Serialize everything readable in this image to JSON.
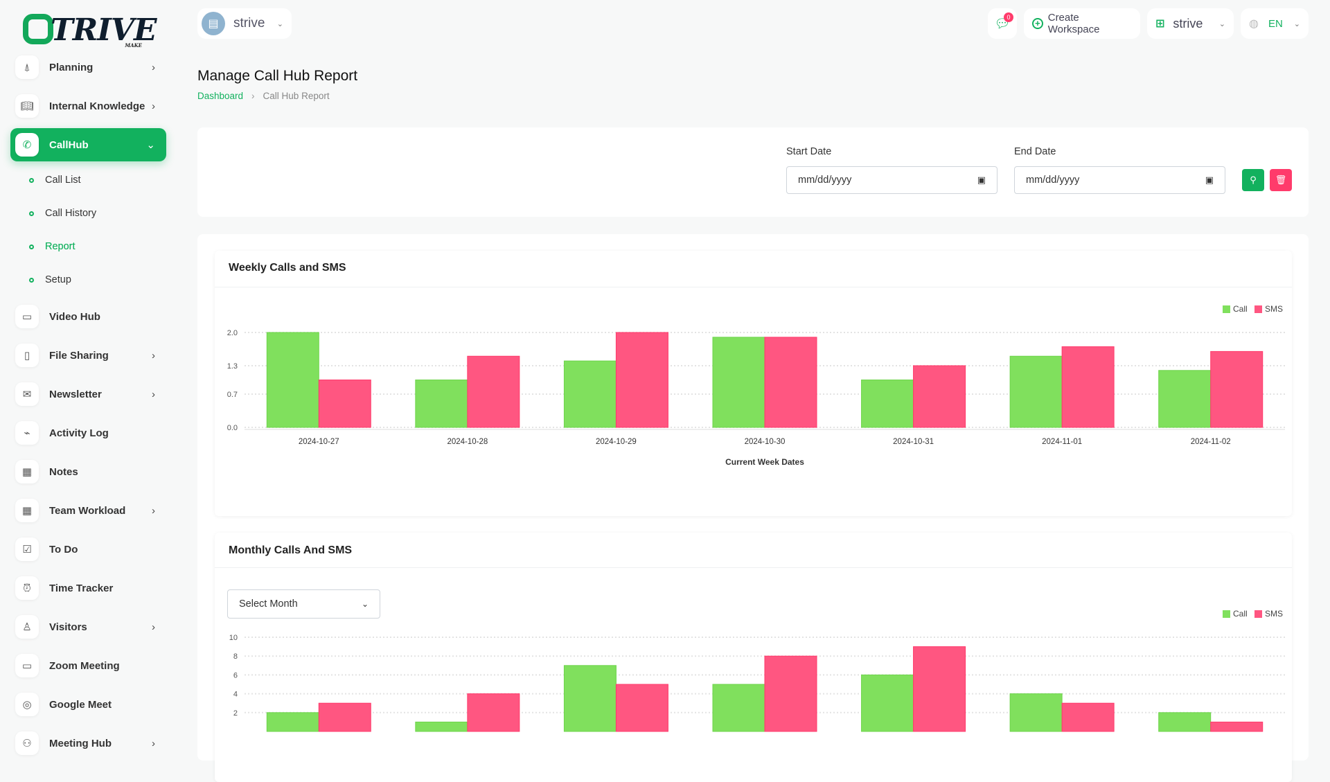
{
  "brand": {
    "logo_text": "TRIVE",
    "logo_sub": "MAKE"
  },
  "header": {
    "workspace": "strive",
    "notifications_count": "0",
    "create_workspace": "Create Workspace",
    "workspace_switch": "strive",
    "language": "EN"
  },
  "page": {
    "title": "Manage Call Hub Report",
    "breadcrumb": [
      "Dashboard",
      "Call Hub Report"
    ]
  },
  "sidebar": {
    "items_top": [
      {
        "label": "Planning",
        "icon": "cone-icon",
        "chev": true
      },
      {
        "label": "Internal Knowledge",
        "icon": "book-icon",
        "chev": true
      }
    ],
    "active": {
      "label": "CallHub",
      "icon": "phone-icon"
    },
    "sub": [
      "Call List",
      "Call History",
      "Report",
      "Setup"
    ],
    "active_sub": "Report",
    "items": [
      {
        "label": "Video Hub",
        "icon": "video-icon",
        "chev": false
      },
      {
        "label": "File Sharing",
        "icon": "file-icon",
        "chev": true
      },
      {
        "label": "Newsletter",
        "icon": "mail-icon",
        "chev": true
      },
      {
        "label": "Activity Log",
        "icon": "activity-icon",
        "chev": false
      },
      {
        "label": "Notes",
        "icon": "calendar-icon",
        "chev": false
      },
      {
        "label": "Team Workload",
        "icon": "calendar-icon",
        "chev": true
      },
      {
        "label": "To Do",
        "icon": "checkbox-icon",
        "chev": false
      },
      {
        "label": "Time Tracker",
        "icon": "alarm-icon",
        "chev": false
      },
      {
        "label": "Visitors",
        "icon": "person-icon",
        "chev": true
      },
      {
        "label": "Zoom Meeting",
        "icon": "camera-icon",
        "chev": false
      },
      {
        "label": "Google Meet",
        "icon": "webcam-icon",
        "chev": false
      },
      {
        "label": "Meeting Hub",
        "icon": "users-icon",
        "chev": true
      }
    ]
  },
  "filter": {
    "start_label": "Start Date",
    "start_placeholder": "mm/dd/yyyy",
    "end_label": "End Date",
    "end_placeholder": "mm/dd/yyyy"
  },
  "monthly": {
    "select_label": "Select Month"
  },
  "colors": {
    "accent": "#12b15e",
    "call": "#80e05d",
    "sms": "#ff5681"
  },
  "chart_data": [
    {
      "type": "bar",
      "title": "Weekly Calls and SMS",
      "xlabel": "Current Week Dates",
      "ylabel": "",
      "categories": [
        "2024-10-27",
        "2024-10-28",
        "2024-10-29",
        "2024-10-30",
        "2024-10-31",
        "2024-11-01",
        "2024-11-02"
      ],
      "series": [
        {
          "name": "Call",
          "values": [
            2,
            1,
            1.4,
            1.9,
            1,
            1.5,
            1.2
          ]
        },
        {
          "name": "SMS",
          "values": [
            1,
            1.5,
            2,
            1.9,
            1.3,
            1.7,
            1.6
          ]
        }
      ],
      "yticks": [
        "0.0",
        "0.7",
        "1.3",
        "2.0"
      ],
      "ylim": [
        0,
        2
      ],
      "legend": "top-right",
      "grid": true
    },
    {
      "type": "bar",
      "title": "Monthly Calls And SMS",
      "xlabel": "",
      "ylabel": "",
      "series": [
        {
          "name": "Call",
          "values": [
            2,
            1,
            7,
            5,
            6,
            4,
            2
          ]
        },
        {
          "name": "SMS",
          "values": [
            3,
            4,
            5,
            8,
            9,
            3,
            1
          ]
        }
      ],
      "yticks": [
        "2",
        "4",
        "6",
        "8",
        "10"
      ],
      "ylim": [
        0,
        10
      ],
      "legend": "top-right",
      "grid": true
    }
  ]
}
